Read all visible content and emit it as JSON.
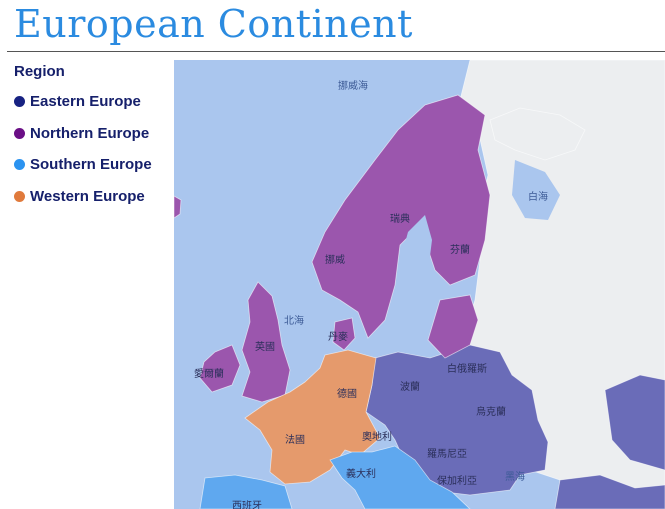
{
  "title": "European Continent",
  "legend": {
    "title": "Region",
    "items": [
      {
        "label": "Eastern Europe",
        "color": "#172282"
      },
      {
        "label": "Northern Europe",
        "color": "#6b0f86"
      },
      {
        "label": "Southern Europe",
        "color": "#2b93f0"
      },
      {
        "label": "Western Europe",
        "color": "#e07a3c"
      }
    ]
  },
  "map": {
    "colors": {
      "water": "#aac6ee",
      "land": "#eceef0",
      "eastern": "#6a6cb8",
      "northern": "#9b56ad",
      "southern": "#5fa8ef",
      "western": "#e59a6c"
    },
    "labels": {
      "norwegian_sea": "挪威海",
      "white_sea": "白海",
      "north_sea": "北海",
      "black_sea": "黑海",
      "sweden": "瑞典",
      "finland": "芬蘭",
      "norway": "挪威",
      "denmark": "丹麥",
      "uk": "英國",
      "ireland": "愛爾蘭",
      "germany": "德國",
      "poland": "波蘭",
      "belarus": "白俄羅斯",
      "ukraine": "烏克蘭",
      "france": "法國",
      "austria": "奧地利",
      "romania": "羅馬尼亞",
      "italy": "義大利",
      "bulgaria": "保加利亞",
      "spain": "西班牙"
    }
  }
}
